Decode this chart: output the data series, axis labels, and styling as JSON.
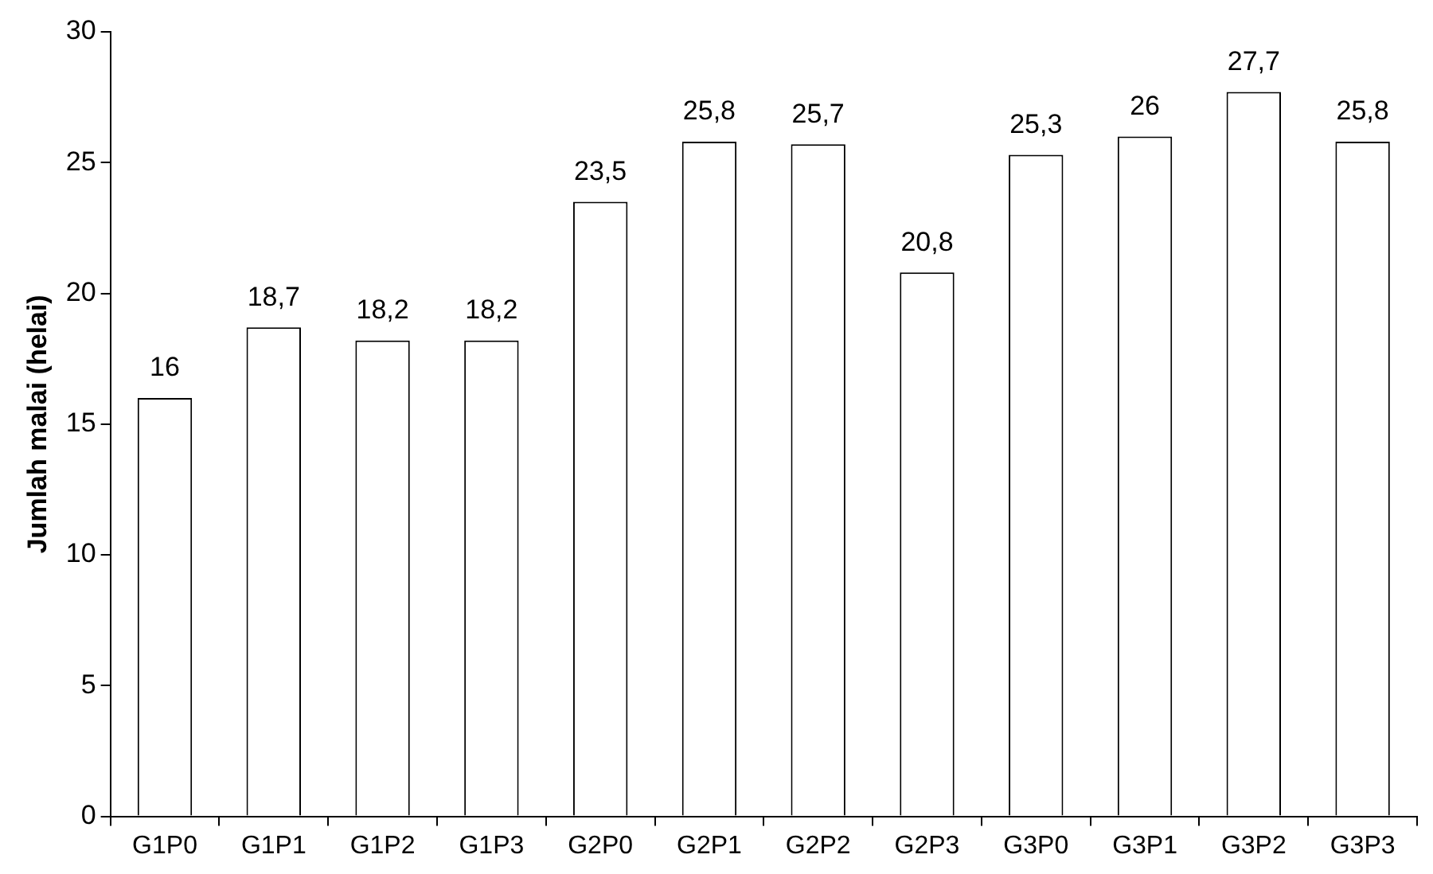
{
  "chart_data": {
    "type": "bar",
    "ylabel": "Jumlah malai (helai)",
    "categories": [
      "G1P0",
      "G1P1",
      "G1P2",
      "G1P3",
      "G2P0",
      "G2P1",
      "G2P2",
      "G2P3",
      "G3P0",
      "G3P1",
      "G3P2",
      "G3P3"
    ],
    "values": [
      16,
      18.7,
      18.2,
      18.2,
      23.5,
      25.8,
      25.7,
      20.8,
      25.3,
      26,
      27.7,
      25.8
    ],
    "value_labels": [
      "16",
      "18,7",
      "18,2",
      "18,2",
      "23,5",
      "25,8",
      "25,7",
      "20,8",
      "25,3",
      "26",
      "27,7",
      "25,8"
    ],
    "color": "#ffffff",
    "ylim": [
      0,
      30
    ],
    "yticks": [
      0,
      5,
      10,
      15,
      20,
      25,
      30
    ],
    "grid": false,
    "legend": false
  }
}
